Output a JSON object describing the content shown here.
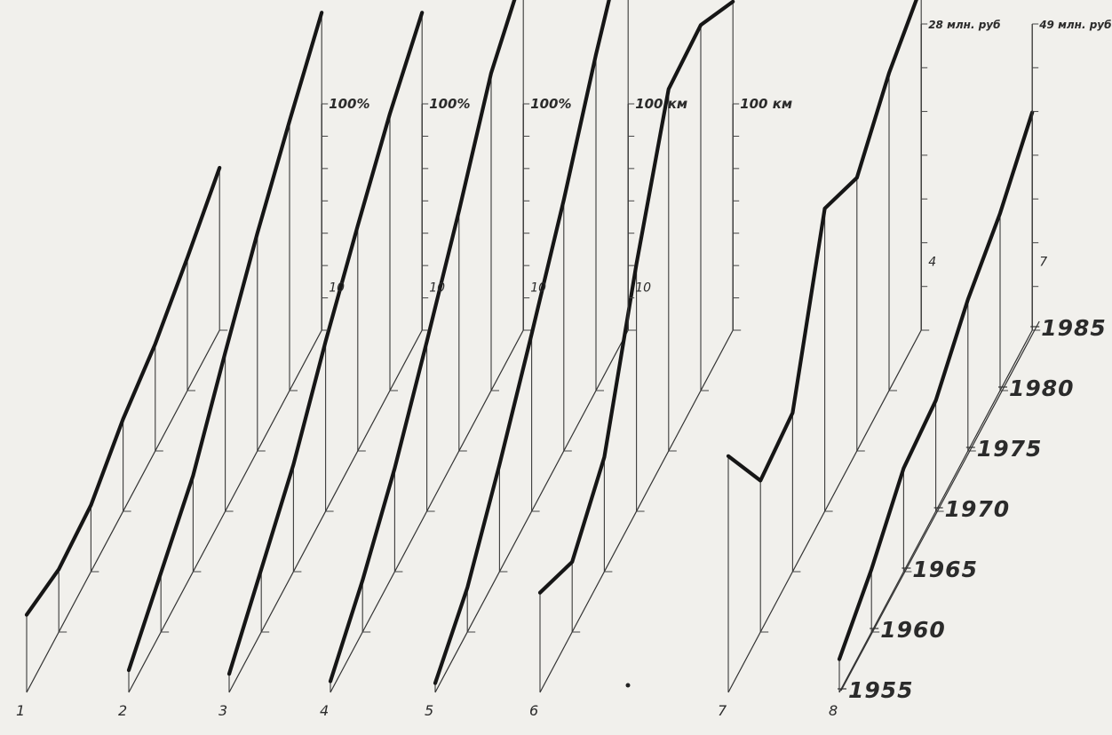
{
  "chart_data": {
    "type": "line",
    "subtype": "3d-stacked-waterfall",
    "x_label_values": [
      1955,
      1960,
      1965,
      1970,
      1975,
      1980,
      1985
    ],
    "panels": [
      {
        "id": "1",
        "label": "1",
        "scale_top": "",
        "scale_mid": "",
        "scale_bot": "",
        "values": [
          0.42,
          0.34,
          0.36,
          0.5,
          0.58,
          0.72,
          0.88
        ]
      },
      {
        "id": "2",
        "label": "2",
        "scale_top": "100%",
        "scale_mid": "10",
        "scale_bot": "",
        "values": [
          0.12,
          0.32,
          0.52,
          0.86,
          1.18,
          1.46,
          1.72
        ]
      },
      {
        "id": "3",
        "label": "3",
        "scale_top": "100%",
        "scale_mid": "10",
        "scale_bot": "",
        "values": [
          0.1,
          0.34,
          0.58,
          0.92,
          1.22,
          1.5,
          1.72
        ]
      },
      {
        "id": "4",
        "label": "4",
        "scale_top": "100%",
        "scale_mid": "10",
        "scale_bot": "",
        "values": [
          0.06,
          0.28,
          0.56,
          0.92,
          1.3,
          1.72,
          1.94
        ]
      },
      {
        "id": "5",
        "label": "5",
        "scale_top": "100 км",
        "scale_mid": "10",
        "scale_bot": "",
        "values": [
          0.05,
          0.24,
          0.58,
          0.96,
          1.36,
          1.82,
          2.22
        ]
      },
      {
        "id": "6",
        "label": "6",
        "scale_top": "100 км",
        "scale_mid": "",
        "scale_bot": "",
        "values": [
          0.54,
          0.38,
          0.62,
          1.34,
          1.96,
          1.98,
          1.78
        ]
      },
      {
        "id": "7",
        "label": "7",
        "scale_top": "28 млн. руб",
        "scale_mid": "",
        "scale_bot": "4",
        "values": [
          1.28,
          0.82,
          0.86,
          1.64,
          1.48,
          1.72,
          1.86
        ]
      },
      {
        "id": "8",
        "label": "8",
        "scale_top": "49 млн. руб.",
        "scale_mid": "",
        "scale_bot": "7",
        "values": [
          0.18,
          0.34,
          0.56,
          0.6,
          0.82,
          0.96,
          1.18
        ]
      }
    ],
    "grid": false,
    "legend": "none"
  }
}
